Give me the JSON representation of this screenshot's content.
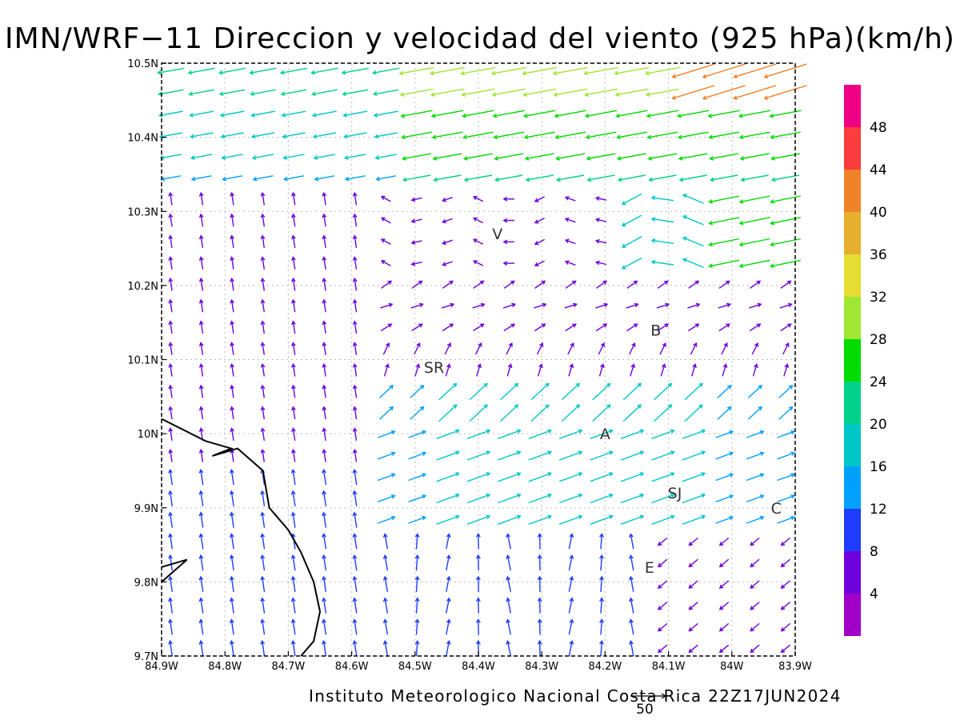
{
  "title": "IMN/WRF−11 Direccion y velocidad del viento (925 hPa)(km/h)",
  "credit": "Instituto Meteorologico Nacional Costa Rica 22Z17JUN2024",
  "reference_vector": {
    "label": "50",
    "speed": 50
  },
  "map": {
    "lon_range": [
      -84.9,
      -83.9
    ],
    "lat_range": [
      9.7,
      10.5
    ],
    "grid_lines": true,
    "lon_ticks": [
      {
        "value": -84.9,
        "label": "84.9W"
      },
      {
        "value": -84.8,
        "label": "84.8W"
      },
      {
        "value": -84.7,
        "label": "84.7W"
      },
      {
        "value": -84.6,
        "label": "84.6W"
      },
      {
        "value": -84.5,
        "label": "84.5W"
      },
      {
        "value": -84.4,
        "label": "84.4W"
      },
      {
        "value": -84.3,
        "label": "84.3W"
      },
      {
        "value": -84.2,
        "label": "84.2W"
      },
      {
        "value": -84.1,
        "label": "84.1W"
      },
      {
        "value": -84.0,
        "label": "84W"
      },
      {
        "value": -83.9,
        "label": "83.9W"
      }
    ],
    "lat_ticks": [
      {
        "value": 9.7,
        "label": "9.7N"
      },
      {
        "value": 9.8,
        "label": "9.8N"
      },
      {
        "value": 9.9,
        "label": "9.9N"
      },
      {
        "value": 10.0,
        "label": "10N"
      },
      {
        "value": 10.1,
        "label": "10.1N"
      },
      {
        "value": 10.2,
        "label": "10.2N"
      },
      {
        "value": 10.3,
        "label": "10.3N"
      },
      {
        "value": 10.4,
        "label": "10.4N"
      },
      {
        "value": 10.5,
        "label": "10.5N"
      }
    ],
    "stations": [
      {
        "label": "V",
        "lon": -84.37,
        "lat": 10.27
      },
      {
        "label": "SR",
        "lon": -84.47,
        "lat": 10.09
      },
      {
        "label": "B",
        "lon": -84.12,
        "lat": 10.14
      },
      {
        "label": "A",
        "lon": -84.2,
        "lat": 10.0
      },
      {
        "label": "SJ",
        "lon": -84.09,
        "lat": 9.92
      },
      {
        "label": "C",
        "lon": -83.93,
        "lat": 9.9
      },
      {
        "label": "E",
        "lon": -84.13,
        "lat": 9.82
      }
    ],
    "coastline": [
      [
        [
          -84.9,
          10.02
        ],
        [
          -84.83,
          9.99
        ],
        [
          -84.79,
          9.98
        ],
        [
          -84.82,
          9.97
        ],
        [
          -84.78,
          9.98
        ],
        [
          -84.74,
          9.95
        ],
        [
          -84.73,
          9.9
        ],
        [
          -84.7,
          9.87
        ],
        [
          -84.68,
          9.84
        ],
        [
          -84.66,
          9.8
        ],
        [
          -84.65,
          9.76
        ],
        [
          -84.66,
          9.72
        ],
        [
          -84.68,
          9.7
        ]
      ],
      [
        [
          -84.9,
          9.8
        ],
        [
          -84.86,
          9.83
        ],
        [
          -84.9,
          9.82
        ]
      ]
    ]
  },
  "colorbar": {
    "levels": [
      "4",
      "8",
      "12",
      "16",
      "20",
      "24",
      "28",
      "32",
      "36",
      "40",
      "44",
      "48"
    ],
    "colors": [
      "#a000c8",
      "#6e00dc",
      "#1e3cff",
      "#00a0ff",
      "#00c8c8",
      "#00d28c",
      "#00dc00",
      "#a0e632",
      "#e6dc32",
      "#e6af2d",
      "#f08228",
      "#fa3c3c",
      "#f00082"
    ]
  },
  "chart_data": {
    "type": "vector-field",
    "title": "IMN/WRF−11 Direccion y velocidad del viento (925 hPa)(km/h)",
    "units": "km/h",
    "level_hPa": 925,
    "valid_time": "22Z17JUN2024",
    "lon_range": [
      -84.9,
      -83.9
    ],
    "lat_range": [
      9.7,
      10.5
    ],
    "speed_levels": [
      4,
      8,
      12,
      16,
      20,
      24,
      28,
      32,
      36,
      40,
      44,
      48
    ],
    "regions": [
      {
        "area": "north (10.35N–10.5N)",
        "direction_to": "W",
        "speed_kmh": [
          16,
          32
        ]
      },
      {
        "area": "northeast corner",
        "direction_to": "WNW",
        "speed_kmh": [
          32,
          48
        ]
      },
      {
        "area": "west (84.9W–84.6W, 9.7N–10.3N)",
        "direction_to": "N",
        "speed_kmh": [
          4,
          12
        ]
      },
      {
        "area": "central valley (84.5W–84.0W, 9.9N–10.05N)",
        "direction_to": "ENE",
        "speed_kmh": [
          12,
          20
        ]
      },
      {
        "area": "southeast (84.1W–83.9W, 9.7N–9.9N)",
        "direction_to": "SW",
        "speed_kmh": [
          4,
          12
        ]
      },
      {
        "area": "south central (84.4W–84.2W, 9.7N–9.85N)",
        "direction_to": "N",
        "speed_kmh": [
          8,
          16
        ]
      }
    ]
  }
}
